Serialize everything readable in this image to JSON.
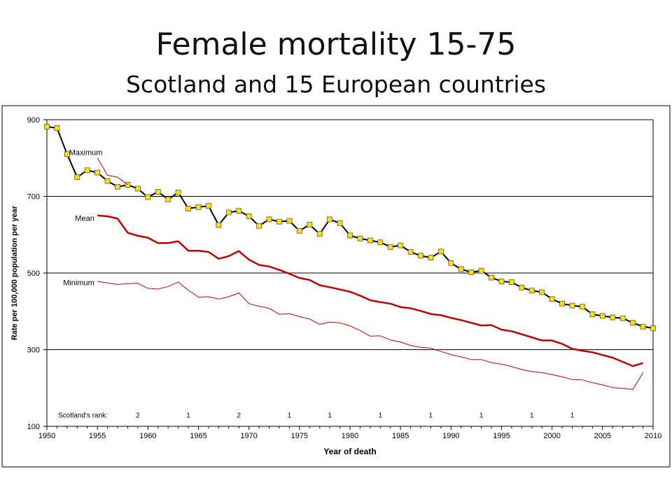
{
  "slide": {
    "title": "Female mortality 15-75",
    "subtitle": "Scotland and 15 European countries"
  },
  "colors": {
    "scotland_line": "#000000",
    "scotland_marker": "#ffe000",
    "mean_line": "#c00000",
    "range_line": "#c00000",
    "gridline": "#000000"
  },
  "chart_data": {
    "type": "line",
    "title": "",
    "xlabel": "Year of death",
    "ylabel": "Rate per 100,000 population per year",
    "xlim": [
      1950,
      2010
    ],
    "ylim": [
      100,
      900
    ],
    "xticks": [
      1950,
      1955,
      1960,
      1965,
      1970,
      1975,
      1980,
      1985,
      1990,
      1995,
      2000,
      2005,
      2010
    ],
    "yticks": [
      100,
      300,
      500,
      700,
      900
    ],
    "grid": "horizontal",
    "series": [
      {
        "name": "Scotland",
        "marker": "square",
        "x": [
          1950,
          1951,
          1952,
          1953,
          1954,
          1955,
          1956,
          1957,
          1958,
          1959,
          1960,
          1961,
          1962,
          1963,
          1964,
          1965,
          1966,
          1967,
          1968,
          1969,
          1970,
          1971,
          1972,
          1973,
          1974,
          1975,
          1976,
          1977,
          1978,
          1979,
          1980,
          1981,
          1982,
          1983,
          1984,
          1985,
          1986,
          1987,
          1988,
          1989,
          1990,
          1991,
          1992,
          1993,
          1994,
          1995,
          1996,
          1997,
          1998,
          1999,
          2000,
          2001,
          2002,
          2003,
          2004,
          2005,
          2006,
          2007,
          2008,
          2009,
          2010
        ],
        "values": [
          882,
          878,
          810,
          750,
          768,
          762,
          740,
          725,
          730,
          720,
          698,
          712,
          692,
          710,
          668,
          672,
          675,
          625,
          658,
          662,
          648,
          623,
          640,
          634,
          636,
          610,
          626,
          602,
          640,
          630,
          598,
          590,
          585,
          580,
          568,
          572,
          555,
          545,
          540,
          556,
          526,
          510,
          502,
          506,
          488,
          478,
          476,
          462,
          454,
          450,
          432,
          420,
          415,
          412,
          392,
          388,
          384,
          382,
          370,
          360,
          356
        ]
      },
      {
        "name": "Maximum",
        "x": [
          1955,
          1956,
          1957,
          1958
        ],
        "values": [
          800,
          755,
          750,
          730
        ]
      },
      {
        "name": "Mean",
        "x": [
          1955,
          1956,
          1957,
          1958,
          1959,
          1960,
          1961,
          1962,
          1963,
          1964,
          1965,
          1966,
          1967,
          1968,
          1969,
          1970,
          1971,
          1972,
          1973,
          1974,
          1975,
          1976,
          1977,
          1978,
          1979,
          1980,
          1981,
          1982,
          1983,
          1984,
          1985,
          1986,
          1987,
          1988,
          1989,
          1990,
          1991,
          1992,
          1993,
          1994,
          1995,
          1996,
          1997,
          1998,
          1999,
          2000,
          2001,
          2002,
          2003,
          2004,
          2005,
          2006,
          2007,
          2008,
          2009
        ],
        "values": [
          650,
          648,
          642,
          605,
          597,
          592,
          578,
          578,
          583,
          558,
          558,
          555,
          537,
          544,
          557,
          535,
          521,
          517,
          508,
          498,
          487,
          482,
          468,
          463,
          457,
          451,
          441,
          429,
          424,
          420,
          411,
          408,
          401,
          393,
          390,
          383,
          377,
          370,
          363,
          364,
          352,
          348,
          340,
          332,
          324,
          324,
          315,
          302,
          297,
          293,
          286,
          279,
          268,
          257,
          265
        ]
      },
      {
        "name": "Minimum",
        "x": [
          1955,
          1956,
          1957,
          1958,
          1959,
          1960,
          1961,
          1962,
          1963,
          1964,
          1965,
          1966,
          1967,
          1968,
          1969,
          1970,
          1971,
          1972,
          1973,
          1974,
          1975,
          1976,
          1977,
          1978,
          1979,
          1980,
          1981,
          1982,
          1983,
          1984,
          1985,
          1986,
          1987,
          1988,
          1989,
          1990,
          1991,
          1992,
          1993,
          1994,
          1995,
          1996,
          1997,
          1998,
          1999,
          2000,
          2001,
          2002,
          2003,
          2004,
          2005,
          2006,
          2007,
          2008,
          2009
        ],
        "values": [
          478,
          474,
          470,
          472,
          473,
          460,
          458,
          465,
          476,
          455,
          437,
          438,
          432,
          438,
          448,
          420,
          413,
          408,
          392,
          394,
          386,
          380,
          366,
          372,
          370,
          362,
          350,
          335,
          336,
          325,
          320,
          311,
          306,
          304,
          295,
          287,
          281,
          274,
          274,
          266,
          262,
          256,
          248,
          243,
          240,
          235,
          229,
          222,
          221,
          214,
          208,
          201,
          199,
          196,
          240
        ]
      }
    ],
    "annotations": {
      "series_labels": [
        {
          "text": "Maximum",
          "series": "Maximum"
        },
        {
          "text": "Mean",
          "series": "Mean"
        },
        {
          "text": "Minimum",
          "series": "Minimum"
        }
      ],
      "rank_label": "Scotland's rank:",
      "ranks": [
        {
          "year": 1959,
          "rank": "2"
        },
        {
          "year": 1964,
          "rank": "1"
        },
        {
          "year": 1969,
          "rank": "2"
        },
        {
          "year": 1974,
          "rank": "1"
        },
        {
          "year": 1978,
          "rank": "1"
        },
        {
          "year": 1983,
          "rank": "1"
        },
        {
          "year": 1988,
          "rank": "1"
        },
        {
          "year": 1993,
          "rank": "1"
        },
        {
          "year": 1998,
          "rank": "1"
        },
        {
          "year": 2002,
          "rank": "1"
        }
      ]
    }
  }
}
